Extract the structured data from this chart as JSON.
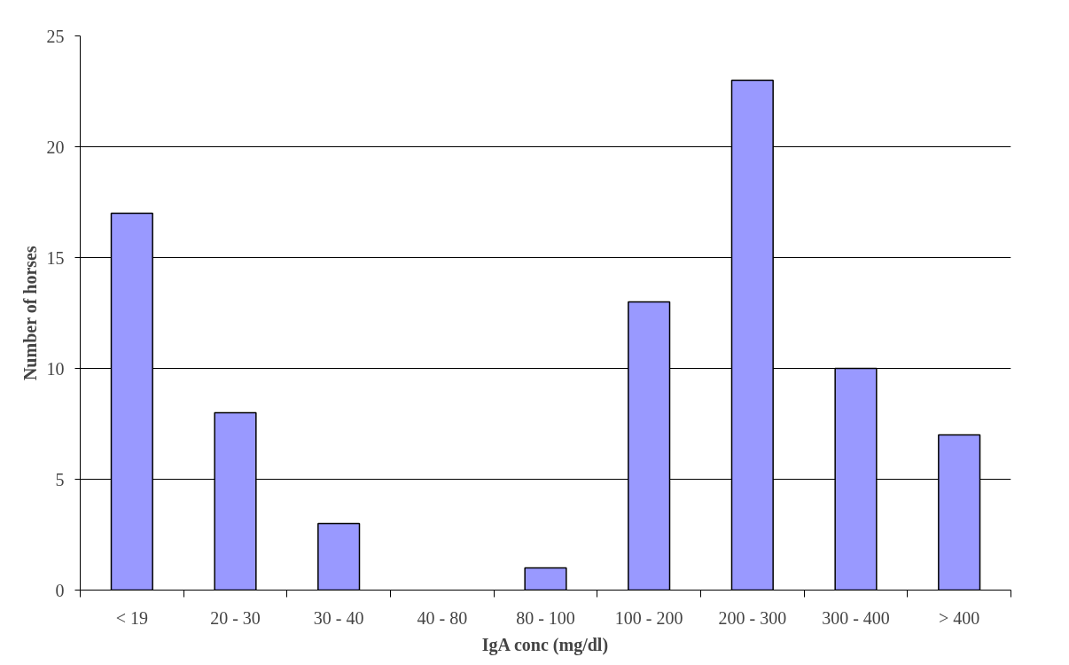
{
  "chart_data": {
    "type": "bar",
    "xlabel": "IgA conc (mg/dl)",
    "ylabel": "Number of horses",
    "categories": [
      "< 19",
      "20 - 30",
      "30 - 40",
      "40 - 80",
      "80 - 100",
      "100 - 200",
      "200 - 300",
      "300 - 400",
      "> 400"
    ],
    "values": [
      17,
      8,
      3,
      0,
      1,
      13,
      23,
      10,
      7
    ],
    "color": "#9999ff",
    "ylim": [
      0,
      25
    ],
    "yticks": [
      0,
      5,
      10,
      15,
      20,
      25
    ],
    "grid": "y"
  }
}
